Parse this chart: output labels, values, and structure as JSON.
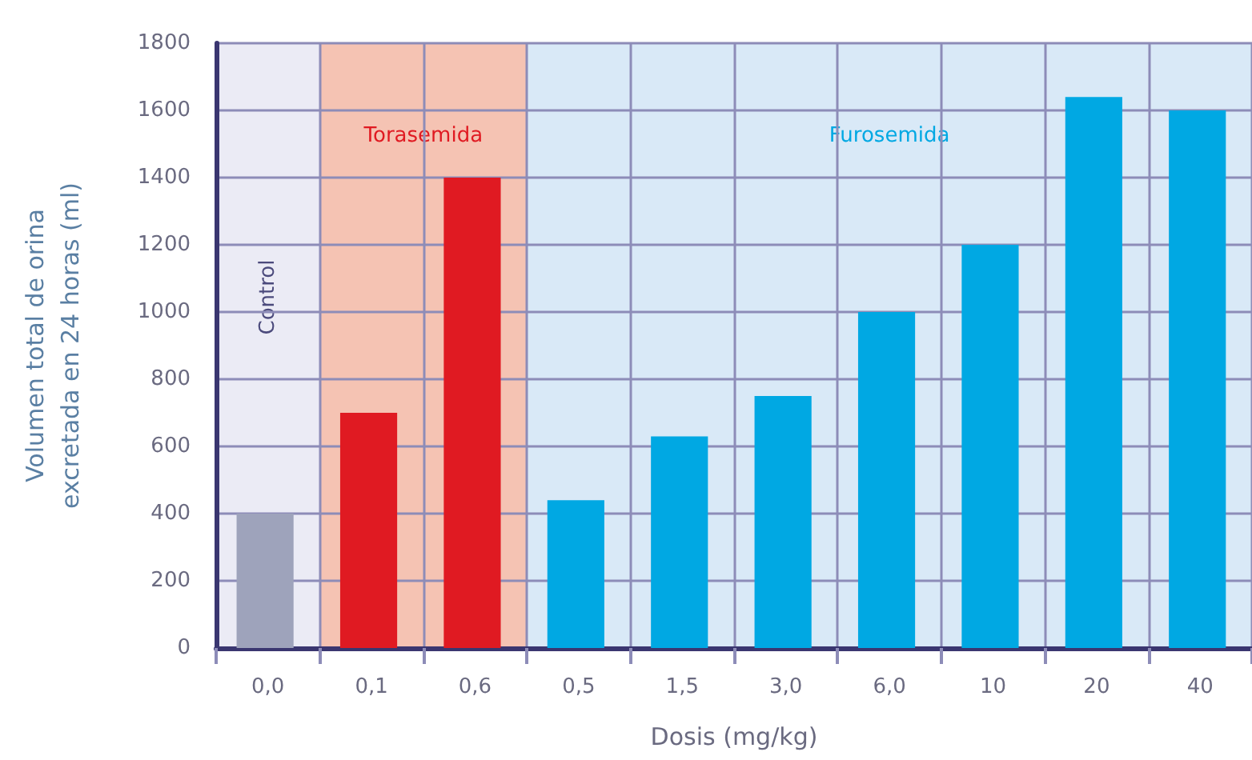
{
  "chart_data": {
    "type": "bar",
    "xlabel": "Dosis (mg/kg)",
    "ylabel": "Volumen total de orina\nexcretada en 24 horas (ml)",
    "categories": [
      "0,0",
      "0,1",
      "0,6",
      "0,5",
      "1,5",
      "3,0",
      "6,0",
      "10",
      "20",
      "40"
    ],
    "values": [
      400,
      700,
      1400,
      440,
      630,
      750,
      1000,
      1200,
      1640,
      1600
    ],
    "colors": [
      "#9ea3bb",
      "#e01a22",
      "#e01a22",
      "#00a8e3",
      "#00a8e3",
      "#00a8e3",
      "#00a8e3",
      "#00a8e3",
      "#00a8e3",
      "#00a8e3"
    ],
    "ylim": [
      0,
      1800
    ],
    "yticks": [
      0,
      200,
      400,
      600,
      800,
      1000,
      1200,
      1400,
      1600,
      1800
    ],
    "grid": true,
    "bands": [
      {
        "axis": "x",
        "from": "0,0",
        "to": "0,0",
        "label": "Control",
        "color": "#ebebf5"
      },
      {
        "axis": "x",
        "from": "0,1",
        "to": "0,6",
        "label": "Torasemida",
        "color": "#f5c3b3"
      },
      {
        "axis": "x",
        "from": "0,5",
        "to": "40",
        "label": "Furosemida",
        "color": "#d9e9f7"
      }
    ]
  }
}
